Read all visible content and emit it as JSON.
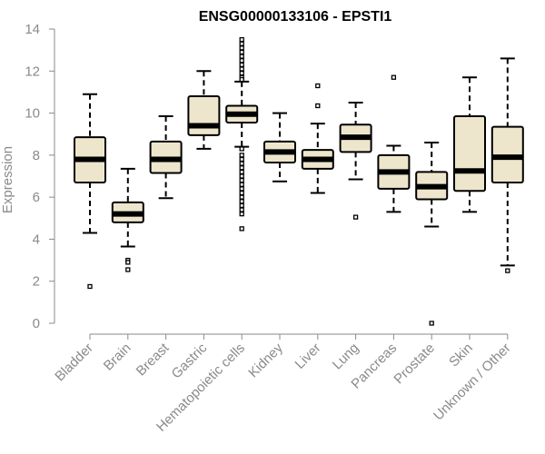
{
  "chart_data": {
    "type": "boxplot",
    "title": "ENSG00000133106 - EPSTI1",
    "xlabel": "",
    "ylabel": "Expression",
    "ylim": [
      0,
      14
    ],
    "yticks": [
      0,
      2,
      4,
      6,
      8,
      10,
      12,
      14
    ],
    "grid": false,
    "legend": "none",
    "colors": {
      "box_fill": "#ede6cc",
      "box_stroke": "#000000",
      "median": "#000000",
      "axis": "#8a8a8a",
      "title": "#000000"
    },
    "categories": [
      "Bladder",
      "Brain",
      "Breast",
      "Gastric",
      "Hematopoietic cells",
      "Kidney",
      "Liver",
      "Lung",
      "Pancreas",
      "Prostate",
      "Skin",
      "Unknown / Other"
    ],
    "boxes": [
      {
        "whisker_low": 4.3,
        "q1": 6.7,
        "median": 7.8,
        "q3": 8.85,
        "whisker_high": 10.9,
        "outliers": [
          1.75
        ]
      },
      {
        "whisker_low": 3.65,
        "q1": 4.8,
        "median": 5.2,
        "q3": 5.75,
        "whisker_high": 7.35,
        "outliers": [
          3.0,
          2.9,
          2.55
        ]
      },
      {
        "whisker_low": 5.95,
        "q1": 7.15,
        "median": 7.8,
        "q3": 8.65,
        "whisker_high": 9.85,
        "outliers": []
      },
      {
        "whisker_low": 8.3,
        "q1": 8.95,
        "median": 9.4,
        "q3": 10.8,
        "whisker_high": 12.0,
        "outliers": []
      },
      {
        "whisker_low": 8.4,
        "q1": 9.55,
        "median": 9.95,
        "q3": 10.35,
        "whisker_high": 11.5,
        "outliers": [
          13.5,
          13.3,
          13.1,
          12.9,
          12.7,
          12.5,
          12.3,
          12.1,
          11.9,
          11.7,
          11.6,
          8.3,
          8.0,
          7.8,
          7.6,
          7.4,
          7.2,
          7.0,
          6.8,
          6.6,
          6.4,
          6.2,
          6.0,
          5.8,
          5.6,
          5.4,
          5.2,
          4.5
        ]
      },
      {
        "whisker_low": 6.75,
        "q1": 7.65,
        "median": 8.15,
        "q3": 8.65,
        "whisker_high": 10.0,
        "outliers": []
      },
      {
        "whisker_low": 6.2,
        "q1": 7.35,
        "median": 7.8,
        "q3": 8.25,
        "whisker_high": 9.5,
        "outliers": [
          11.3,
          10.35
        ]
      },
      {
        "whisker_low": 6.85,
        "q1": 8.15,
        "median": 8.85,
        "q3": 9.45,
        "whisker_high": 10.5,
        "outliers": [
          5.05
        ]
      },
      {
        "whisker_low": 5.3,
        "q1": 6.4,
        "median": 7.2,
        "q3": 8.0,
        "whisker_high": 8.45,
        "outliers": [
          11.7
        ]
      },
      {
        "whisker_low": 4.6,
        "q1": 5.9,
        "median": 6.5,
        "q3": 7.2,
        "whisker_high": 8.6,
        "outliers": [
          0.0
        ]
      },
      {
        "whisker_low": 5.3,
        "q1": 6.3,
        "median": 7.25,
        "q3": 9.85,
        "whisker_high": 11.7,
        "outliers": []
      },
      {
        "whisker_low": 2.75,
        "q1": 6.7,
        "median": 7.9,
        "q3": 9.35,
        "whisker_high": 12.6,
        "outliers": [
          2.5
        ]
      }
    ]
  }
}
